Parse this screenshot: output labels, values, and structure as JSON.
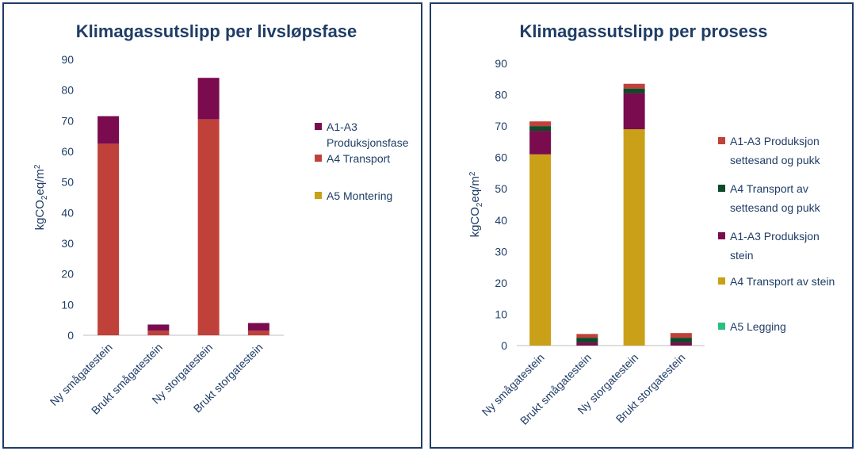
{
  "chart_data": [
    {
      "type": "bar",
      "stacked": true,
      "title": "Klimagassutslipp per livsløpsfase",
      "ylabel": {
        "main": "kgCO",
        "sub": "2",
        "mid": "eq/m",
        "sup": "2"
      },
      "ylim": [
        0,
        90
      ],
      "yticks": [
        0,
        10,
        20,
        30,
        40,
        50,
        60,
        70,
        80,
        90
      ],
      "categories": [
        "Ny smågatestein",
        "Brukt smågatestein",
        "Ny storgatestein",
        "Brukt storgatestein"
      ],
      "series": [
        {
          "name": "A5 Montering",
          "lines": [
            "A5 Montering"
          ],
          "color": "#c9a017",
          "values": [
            0,
            0,
            0,
            0
          ]
        },
        {
          "name": "A4 Transport",
          "lines": [
            "A4 Transport"
          ],
          "color": "#c0413a",
          "values": [
            62.5,
            1.5,
            70.5,
            1.5
          ]
        },
        {
          "name": "A1-A3 Produksjonsfase",
          "lines": [
            "A1-A3",
            "Produksjonsfase"
          ],
          "color": "#7a0b4e",
          "values": [
            9.0,
            2.0,
            13.5,
            2.5
          ]
        }
      ],
      "legend_order": [
        2,
        1,
        0
      ],
      "legend_position": "right",
      "grid": false
    },
    {
      "type": "bar",
      "stacked": true,
      "title": "Klimagassutslipp per prosess",
      "ylabel": {
        "main": "kgCO",
        "sub": "2",
        "mid": "eq/m",
        "sup": "2"
      },
      "ylim": [
        0,
        90
      ],
      "yticks": [
        0,
        10,
        20,
        30,
        40,
        50,
        60,
        70,
        80,
        90
      ],
      "categories": [
        "Ny smågatestein",
        "Brukt smågatestein",
        "Ny storgatestein",
        "Brukt storgatestein"
      ],
      "series": [
        {
          "name": "A5 Legging",
          "lines": [
            "A5 Legging"
          ],
          "color": "#2bbf7f",
          "values": [
            0,
            0,
            0,
            0
          ]
        },
        {
          "name": "A4 Transport av stein",
          "lines": [
            "A4 Transport av stein"
          ],
          "color": "#c9a017",
          "values": [
            61.0,
            0,
            69.0,
            0
          ]
        },
        {
          "name": "A1-A3 Produksjon stein",
          "lines": [
            "A1-A3 Produksjon",
            "stein"
          ],
          "color": "#7a0b4e",
          "values": [
            7.5,
            1.0,
            11.5,
            1.0
          ]
        },
        {
          "name": "A4 Transport av settesand og pukk",
          "lines": [
            "A4 Transport av",
            "settesand og pukk"
          ],
          "color": "#0e4a2a",
          "values": [
            1.5,
            1.5,
            1.5,
            1.5
          ]
        },
        {
          "name": "A1-A3 Produksjon settesand og pukk",
          "lines": [
            "A1-A3 Produksjon",
            "settesand og pukk"
          ],
          "color": "#c0413a",
          "values": [
            1.5,
            1.2,
            1.5,
            1.5
          ]
        }
      ],
      "legend_order": [
        4,
        3,
        2,
        1,
        0
      ],
      "legend_position": "right",
      "grid": false
    }
  ]
}
